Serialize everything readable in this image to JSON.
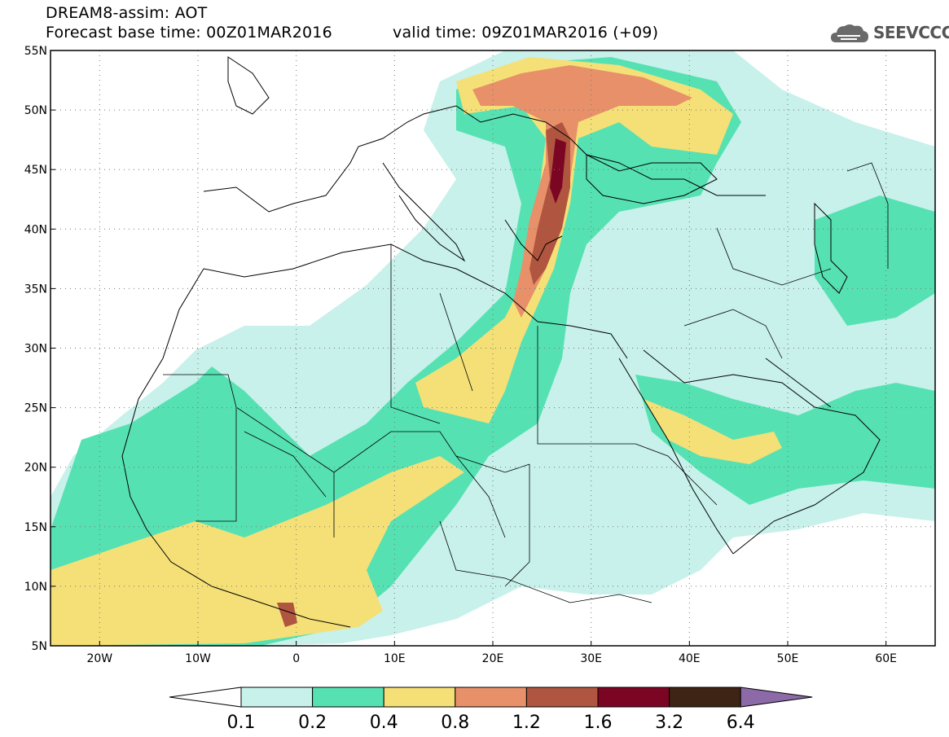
{
  "header": {
    "line1": "DREAM8-assim: AOT",
    "base_time": "Forecast base time: 00Z01MAR2016",
    "valid_time": "valid time: 09Z01MAR2016 (+09)"
  },
  "logo": {
    "text": "SEEVCCC",
    "icon": "cloud-logo-icon"
  },
  "map": {
    "lat_labels": [
      "55N",
      "50N",
      "45N",
      "40N",
      "35N",
      "30N",
      "25N",
      "20N",
      "15N",
      "10N",
      "5N"
    ],
    "lon_labels": [
      "20W",
      "10W",
      "0",
      "10E",
      "20E",
      "30E",
      "40E",
      "50E",
      "60E"
    ],
    "lat_range": [
      5,
      55
    ],
    "lon_range": [
      -25,
      65
    ],
    "grid": true
  },
  "colorbar": {
    "levels": [
      "0.1",
      "0.2",
      "0.4",
      "0.8",
      "1.2",
      "1.6",
      "3.2",
      "6.4"
    ],
    "colors": [
      "#ffffff",
      "#c7f1ea",
      "#56e1b3",
      "#f5e077",
      "#e8906a",
      "#b0553f",
      "#7b0624",
      "#3d2414",
      "#8c6aa8"
    ]
  }
}
